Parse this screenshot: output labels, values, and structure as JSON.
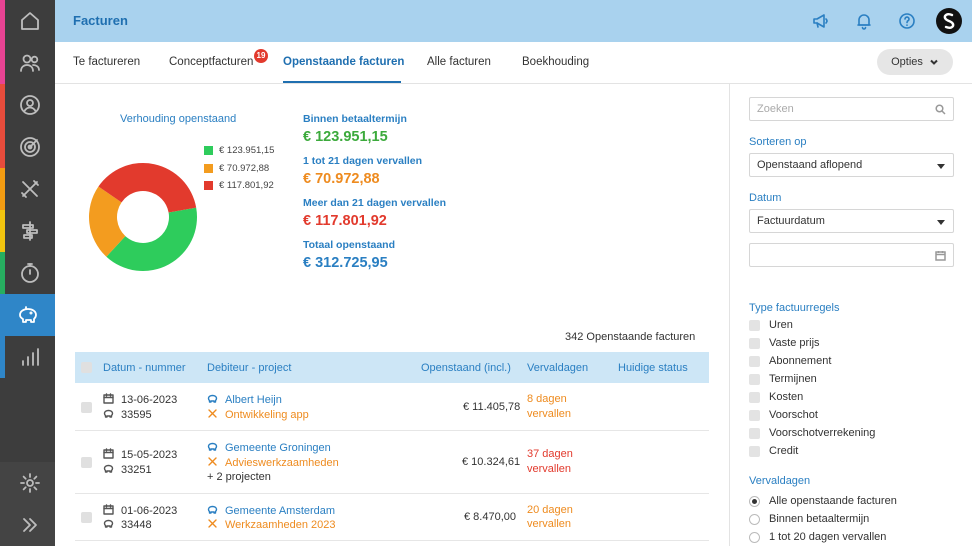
{
  "header": {
    "title": "Facturen"
  },
  "tabs": [
    {
      "label": "Te factureren"
    },
    {
      "label": "Conceptfacturen",
      "badge": "19"
    },
    {
      "label": "Openstaande facturen"
    },
    {
      "label": "Alle facturen"
    },
    {
      "label": "Boekhouding"
    }
  ],
  "options_label": "Opties",
  "summary": {
    "donut_title": "Verhouding openstaand",
    "legend": [
      {
        "label": "€ 123.951,15",
        "color": "#2ecc5c"
      },
      {
        "label": "€ 70.972,88",
        "color": "#f39c1f"
      },
      {
        "label": "€ 117.801,92",
        "color": "#e23a2d"
      }
    ],
    "stats": [
      {
        "label": "Binnen betaaltermijn",
        "value": "€ 123.951,15",
        "color": "#3caa3c"
      },
      {
        "label": "1 tot 21 dagen vervallen",
        "value": "€ 70.972,88",
        "color": "#ee8b1f"
      },
      {
        "label": "Meer dan 21 dagen vervallen",
        "value": "€ 117.801,92",
        "color": "#e23a2d"
      },
      {
        "label": "Totaal openstaand",
        "value": "€ 312.725,95",
        "color": "#2a7fc2"
      }
    ]
  },
  "chart_data": {
    "type": "pie",
    "categories": [
      "€ 123.951,15",
      "€ 70.972,88",
      "€ 117.801,92"
    ],
    "values": [
      123951.15,
      70972.88,
      117801.92
    ],
    "colors": [
      "#2ecc5c",
      "#f39c1f",
      "#e23a2d"
    ],
    "title": "Verhouding openstaand",
    "legend": "right"
  },
  "table": {
    "count_text": "342 Openstaande facturen",
    "headers": {
      "date_number": "Datum - nummer",
      "debtor_project": "Debiteur - project",
      "outstanding": "Openstaand (incl.)",
      "due_days": "Vervaldagen",
      "status": "Huidige status"
    },
    "rows": [
      {
        "date": "13-06-2023",
        "number": "33595",
        "debtor": "Albert Heijn",
        "project": "Ontwikkeling app",
        "extra": "",
        "amount": "€ 11.405,78",
        "due_line1": "8 dagen",
        "due_line2": "vervallen",
        "due_color": "orange"
      },
      {
        "date": "15-05-2023",
        "number": "33251",
        "debtor": "Gemeente Groningen",
        "project": "Advieswerkzaamheden",
        "extra": "+ 2 projecten",
        "amount": "€ 10.324,61",
        "due_line1": "37 dagen",
        "due_line2": "vervallen",
        "due_color": "red"
      },
      {
        "date": "01-06-2023",
        "number": "33448",
        "debtor": "Gemeente Amsterdam",
        "project": "Werkzaamheden 2023",
        "extra": "",
        "amount": "€ 8.470,00",
        "due_line1": "20 dagen",
        "due_line2": "vervallen",
        "due_color": "orange"
      }
    ]
  },
  "filters": {
    "search_placeholder": "Zoeken",
    "sort_label": "Sorteren op",
    "sort_value": "Openstaand aflopend",
    "date_label": "Datum",
    "date_value": "Factuurdatum",
    "line_types_label": "Type factuurregels",
    "line_types": [
      "Uren",
      "Vaste prijs",
      "Abonnement",
      "Termijnen",
      "Kosten",
      "Voorschot",
      "Voorschotverrekening",
      "Credit"
    ],
    "due_label": "Vervaldagen",
    "due_options": [
      {
        "label": "Alle openstaande facturen",
        "selected": true
      },
      {
        "label": "Binnen betaaltermijn",
        "selected": false
      },
      {
        "label": "1 tot 20 dagen vervallen",
        "selected": false
      }
    ]
  },
  "sidebar": {
    "strip_colors": [
      "#e84393",
      "#e74c3c",
      "#f39c12",
      "#f1c40f",
      "#27ae60",
      "#2f86c8"
    ]
  }
}
